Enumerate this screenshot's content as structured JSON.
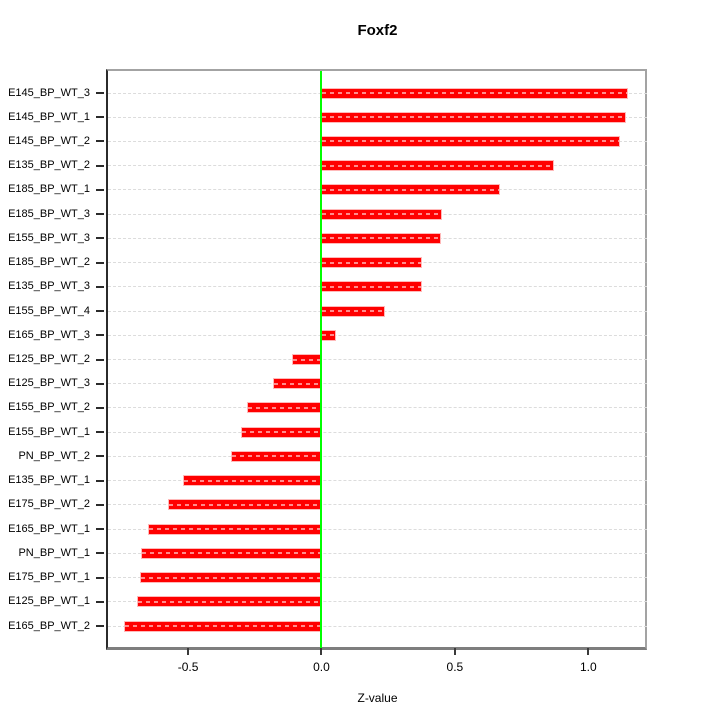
{
  "chart_data": {
    "type": "bar",
    "orientation": "horizontal",
    "title": "Foxf2",
    "xlabel": "Z-value",
    "categories": [
      "E145_BP_WT_3",
      "E145_BP_WT_1",
      "E145_BP_WT_2",
      "E135_BP_WT_2",
      "E185_BP_WT_1",
      "E185_BP_WT_3",
      "E155_BP_WT_3",
      "E185_BP_WT_2",
      "E135_BP_WT_3",
      "E155_BP_WT_4",
      "E165_BP_WT_3",
      "E125_BP_WT_2",
      "E125_BP_WT_3",
      "E155_BP_WT_2",
      "E155_BP_WT_1",
      "PN_BP_WT_2",
      "E135_BP_WT_1",
      "E175_BP_WT_2",
      "E165_BP_WT_1",
      "PN_BP_WT_1",
      "E175_BP_WT_1",
      "E125_BP_WT_1",
      "E165_BP_WT_2"
    ],
    "values": [
      1.15,
      1.14,
      1.12,
      0.87,
      0.67,
      0.452,
      0.447,
      0.378,
      0.375,
      0.24,
      0.055,
      -0.11,
      -0.18,
      -0.28,
      -0.3,
      -0.34,
      -0.52,
      -0.575,
      -0.65,
      -0.675,
      -0.68,
      -0.69,
      -0.74
    ],
    "xticks": [
      -0.5,
      0.0,
      0.5,
      1.0
    ],
    "xtick_labels": [
      "-0.5",
      "0.0",
      "0.5",
      "1.0"
    ],
    "xlim": [
      -0.8,
      1.22
    ],
    "grid": true,
    "legend": null,
    "colors": {
      "bar": "#ff0000",
      "bar_border": "#ffb9b9",
      "zero_line": "#00ff00",
      "grid": "#dcdcdc",
      "box": "#a3a3a3",
      "axis": "#2b2b2b",
      "text": "#000000"
    }
  }
}
